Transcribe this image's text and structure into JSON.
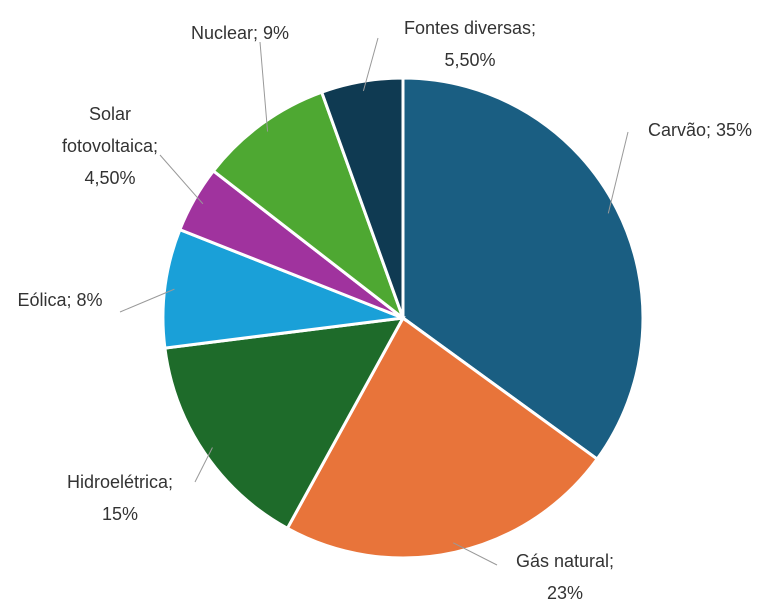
{
  "chart_data": {
    "type": "pie",
    "categories": [
      "Carvão",
      "Gás natural",
      "Hidroelétrica",
      "Eólica",
      "Solar fotovoltaica",
      "Nuclear",
      "Fontes diversas"
    ],
    "values": [
      35,
      23,
      15,
      8,
      4.5,
      9,
      5.5
    ],
    "value_labels": [
      "35%",
      "23%",
      "15%",
      "8%",
      "4,50%",
      "9%",
      "5,50%"
    ],
    "separator": ";",
    "colors": [
      "#1a5e82",
      "#e8743a",
      "#1e6b2a",
      "#1aa0d8",
      "#a0339e",
      "#4ea832",
      "#0f3a52"
    ]
  }
}
